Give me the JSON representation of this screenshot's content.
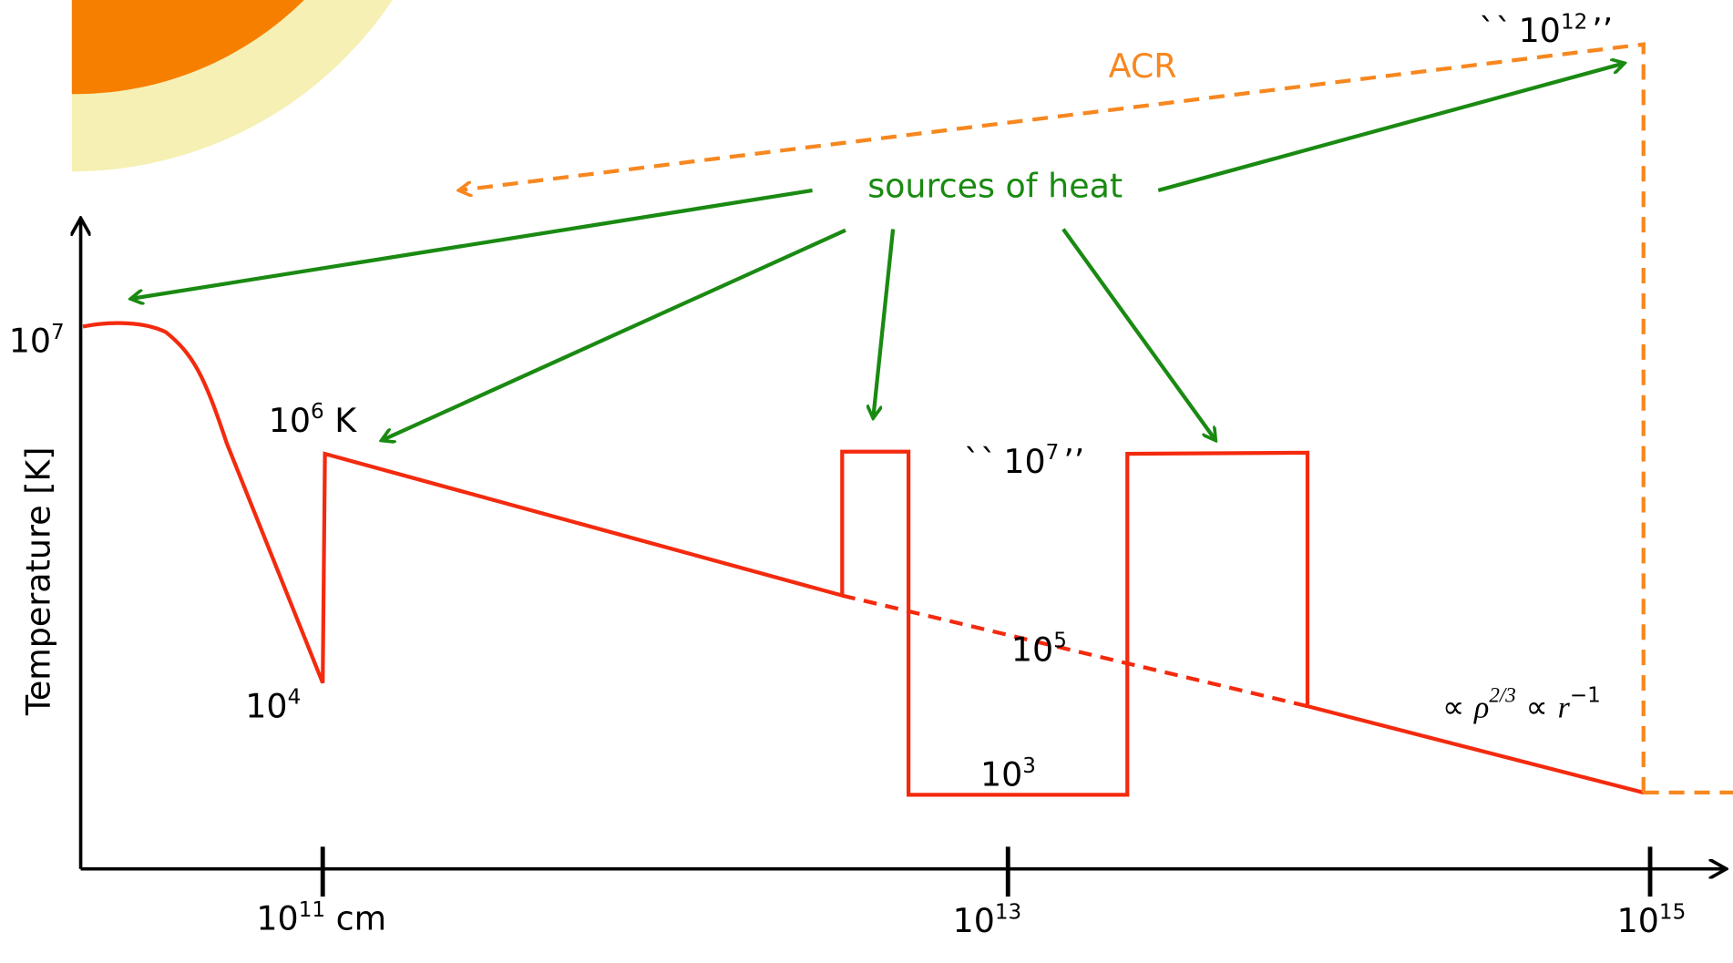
{
  "axes": {
    "y_label": "Temperature  [K]",
    "y_tick": {
      "base": "10",
      "sup": "7"
    },
    "x_ticks": [
      {
        "base": "10",
        "sup": "11",
        "suffix": " cm"
      },
      {
        "base": "10",
        "sup": "13"
      },
      {
        "base": "10",
        "sup": "15"
      }
    ]
  },
  "labels": {
    "corona": {
      "base": "10",
      "sup": "6",
      "suffix": " K"
    },
    "chromosphere": {
      "base": "10",
      "sup": "4"
    },
    "hot": {
      "prefix": "``",
      "base": "10",
      "sup": "7",
      "suffix": "’’"
    },
    "warm": {
      "base": "10",
      "sup": "5"
    },
    "cold": {
      "base": "10",
      "sup": "3"
    },
    "acr_temp": {
      "prefix": "``",
      "base": "10",
      "sup": "12",
      "suffix": "’’"
    },
    "acr": "ACR",
    "heat": "sources of heat",
    "scaling": {
      "p1": "∝ ",
      "rho": "ρ",
      "rho_exp": "2/3",
      "p2": " ∝ ",
      "r": "r",
      "r_exp": "−1"
    }
  }
}
